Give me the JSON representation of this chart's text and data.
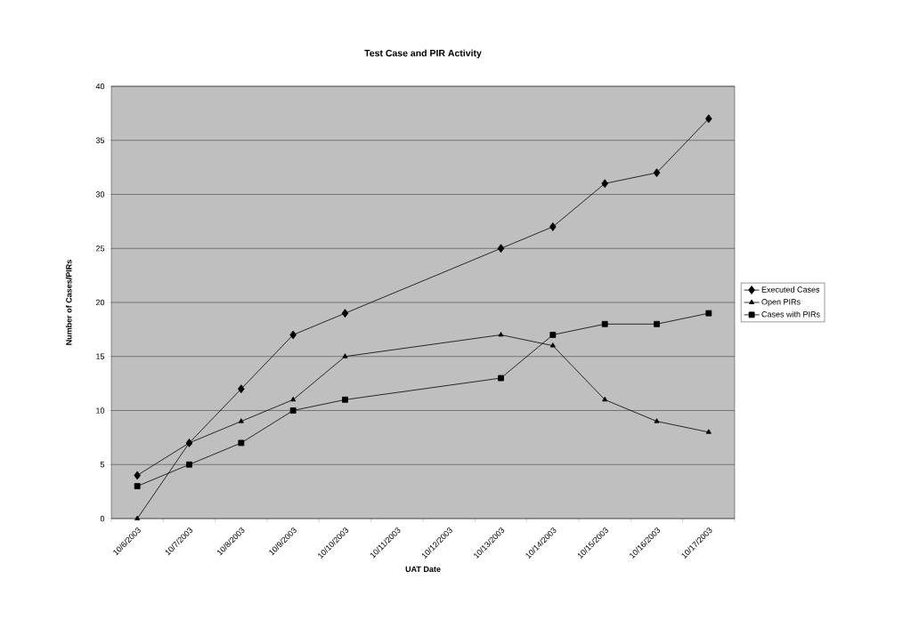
{
  "chart_data": {
    "type": "line",
    "title": "Test Case and PIR Activity",
    "xlabel": "UAT Date",
    "ylabel": "Number of Cases/PIRs",
    "categories": [
      "10/6/2003",
      "10/7/2003",
      "10/8/2003",
      "10/9/2003",
      "10/10/2003",
      "10/11/2003",
      "10/12/2003",
      "10/13/2003",
      "10/14/2003",
      "10/15/2003",
      "10/16/2003",
      "10/17/2003"
    ],
    "series": [
      {
        "name": "Executed Cases",
        "color": "#000000",
        "marker": "diamond",
        "values": [
          4,
          7,
          12,
          17,
          19,
          null,
          null,
          25,
          27,
          31,
          32,
          37
        ]
      },
      {
        "name": "Open PIRs",
        "color": "#000000",
        "marker": "triangle",
        "values": [
          0,
          7,
          9,
          11,
          15,
          null,
          null,
          17,
          16,
          11,
          9,
          8
        ]
      },
      {
        "name": "Cases with PIRs",
        "color": "#000000",
        "marker": "square",
        "values": [
          3,
          5,
          7,
          10,
          11,
          null,
          null,
          13,
          17,
          18,
          18,
          19
        ]
      }
    ],
    "ylim": [
      0,
      40
    ],
    "yticks": [
      0,
      5,
      10,
      15,
      20,
      25,
      30,
      35,
      40
    ],
    "grid": "y",
    "legend": "right",
    "line_style": "solid"
  }
}
